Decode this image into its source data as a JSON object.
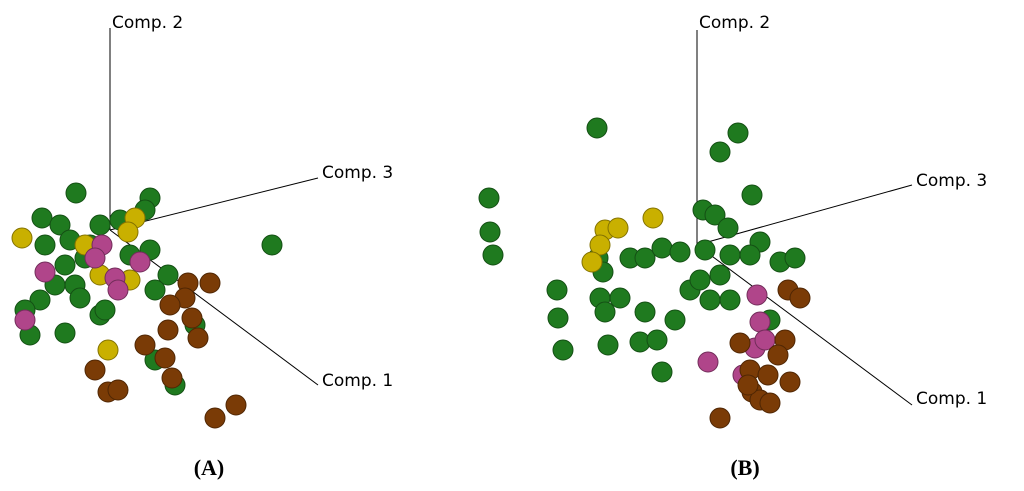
{
  "chart_data": [
    {
      "type": "scatter",
      "label": "(A)",
      "axis_labels": [
        "Comp. 1",
        "Comp. 2",
        "Comp. 3"
      ],
      "xlim": [
        -110,
        350
      ],
      "ylim": [
        -230,
        230
      ],
      "series": [
        {
          "color": "#1f7a1f",
          "x": [
            -34,
            40,
            35,
            -68,
            -50,
            -65,
            -40,
            -10,
            10,
            40,
            -45,
            -25,
            -35,
            -70,
            -85,
            -80,
            -45,
            -10,
            -5,
            58,
            45,
            85,
            162,
            45,
            65,
            -20,
            20,
            -55,
            -30
          ],
          "y": [
            37,
            32,
            20,
            12,
            5,
            -15,
            -10,
            5,
            10,
            -20,
            -35,
            -28,
            -55,
            -70,
            -80,
            -105,
            -103,
            -85,
            -80,
            -45,
            -60,
            -95,
            -15,
            -130,
            -155,
            -15,
            -25,
            -55,
            -68
          ]
        },
        {
          "color": "#c9b000",
          "x": [
            -88,
            25,
            18,
            -25,
            -10,
            20,
            -2
          ],
          "y": [
            -8,
            12,
            -2,
            -15,
            -45,
            -50,
            -120
          ]
        },
        {
          "color": "#b0458a",
          "x": [
            -8,
            -65,
            -15,
            5,
            8,
            -85,
            30
          ],
          "y": [
            -15,
            -42,
            -28,
            -48,
            -60,
            -90,
            -32
          ]
        },
        {
          "color": "#7a3b06",
          "x": [
            78,
            100,
            75,
            60,
            82,
            58,
            88,
            35,
            55,
            -15,
            62,
            -2,
            8,
            105,
            126
          ],
          "y": [
            -53,
            -53,
            -68,
            -75,
            -88,
            -100,
            -108,
            -115,
            -128,
            -140,
            -148,
            -162,
            -160,
            -188,
            -175
          ]
        }
      ]
    },
    {
      "type": "scatter",
      "label": "(B)",
      "axis_labels": [
        "Comp. 1",
        "Comp. 2",
        "Comp. 3"
      ],
      "xlim": [
        -230,
        297
      ],
      "ylim": [
        -215,
        245
      ],
      "series": [
        {
          "color": "#1f7a1f",
          "x": [
            -100,
            41,
            23,
            55,
            -208,
            -207,
            -204,
            6,
            18,
            31,
            63,
            -67,
            -52,
            -35,
            -17,
            8,
            33,
            53,
            83,
            98,
            -99,
            -94,
            -140,
            -97,
            -77,
            -92,
            -52,
            -7,
            23,
            13,
            33,
            -22,
            -139,
            73,
            -57,
            -40,
            -89,
            -134,
            -35,
            3
          ],
          "y": [
            117,
            112,
            93,
            50,
            47,
            13,
            -10,
            35,
            30,
            17,
            3,
            -13,
            -13,
            -3,
            -7,
            -5,
            -10,
            -10,
            -17,
            -13,
            -13,
            -27,
            -45,
            -53,
            -53,
            -67,
            -67,
            -45,
            -30,
            -55,
            -55,
            -75,
            -73,
            -75,
            -97,
            -95,
            -100,
            -105,
            -127,
            -35
          ]
        },
        {
          "color": "#c9b000",
          "x": [
            -92,
            -79,
            -44,
            -97,
            -105
          ],
          "y": [
            15,
            17,
            27,
            0,
            -17
          ]
        },
        {
          "color": "#b0458a",
          "x": [
            60,
            63,
            58,
            68,
            11,
            46
          ],
          "y": [
            -50,
            -77,
            -103,
            -95,
            -117,
            -130
          ]
        },
        {
          "color": "#7a3b06",
          "x": [
            91,
            103,
            43,
            88,
            81,
            53,
            71,
            93,
            55,
            63,
            73,
            23,
            51
          ],
          "y": [
            -45,
            -53,
            -98,
            -95,
            -110,
            -125,
            -130,
            -137,
            -147,
            -155,
            -158,
            -173,
            -140
          ]
        }
      ]
    }
  ]
}
